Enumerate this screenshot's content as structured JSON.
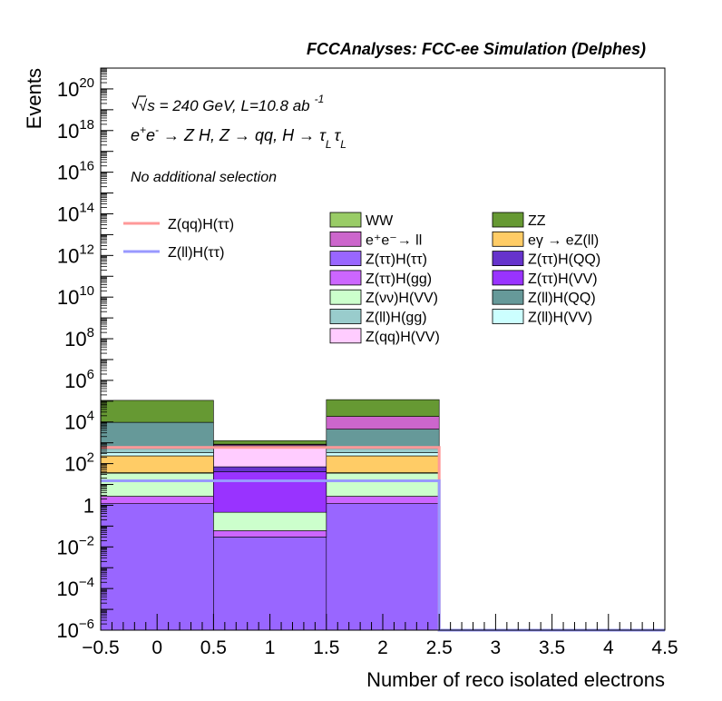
{
  "chart_data": {
    "type": "bar",
    "stacked": true,
    "title": "FCCAnalyses: FCC-ee Simulation (Delphes)",
    "annotations": {
      "line1_sqrt": "√s",
      "line1_rest": " = 240 GeV, L=10.8 ab",
      "line1_exp": "-1",
      "process": "e⁺e⁻ → Z H, Z → qq, H → τ_L τ_L",
      "process_parts": {
        "e1": "e",
        "sup1": "+",
        "e2": "e",
        "sup2": "-",
        "rest": " → Z H, Z  → qq, H  → ",
        "tau": "τ",
        "sub": "L"
      },
      "selection": "No additional selection"
    },
    "xlabel": "Number of reco isolated electrons",
    "ylabel": "Events",
    "xlim": [
      -0.5,
      4.5
    ],
    "ylim": [
      1e-06,
      1e+21
    ],
    "yscale": "log",
    "xticks": [
      {
        "v": -0.5,
        "label": "−0.5"
      },
      {
        "v": 0,
        "label": "0"
      },
      {
        "v": 0.5,
        "label": "0.5"
      },
      {
        "v": 1,
        "label": "1"
      },
      {
        "v": 1.5,
        "label": "1.5"
      },
      {
        "v": 2,
        "label": "2"
      },
      {
        "v": 2.5,
        "label": "2.5"
      },
      {
        "v": 3,
        "label": "3"
      },
      {
        "v": 3.5,
        "label": "3.5"
      },
      {
        "v": 4,
        "label": "4"
      },
      {
        "v": 4.5,
        "label": "4.5"
      }
    ],
    "yticks": [
      {
        "exp": -6,
        "base": "10",
        "sup": "−6"
      },
      {
        "exp": -4,
        "base": "10",
        "sup": "−4"
      },
      {
        "exp": -2,
        "base": "10",
        "sup": "−2"
      },
      {
        "exp": 0,
        "base": "1",
        "sup": ""
      },
      {
        "exp": 2,
        "base": "10",
        "sup": "2"
      },
      {
        "exp": 4,
        "base": "10",
        "sup": "4"
      },
      {
        "exp": 6,
        "base": "10",
        "sup": "6"
      },
      {
        "exp": 8,
        "base": "10",
        "sup": "8"
      },
      {
        "exp": 10,
        "base": "10",
        "sup": "10"
      },
      {
        "exp": 12,
        "base": "10",
        "sup": "12"
      },
      {
        "exp": 14,
        "base": "10",
        "sup": "14"
      },
      {
        "exp": 16,
        "base": "10",
        "sup": "16"
      },
      {
        "exp": 18,
        "base": "10",
        "sup": "18"
      },
      {
        "exp": 20,
        "base": "10",
        "sup": "20"
      }
    ],
    "bins": [
      -0.5,
      0.5,
      1.5,
      2.5,
      3.5,
      4.5
    ],
    "stack": [
      {
        "name": "Z(ττ)H(ττ)",
        "color": "#9966ff",
        "values": [
          1.2,
          0.03,
          1.2,
          0,
          0
        ]
      },
      {
        "name": "Z(ττ)H(gg)",
        "color": "#cc66ff",
        "values": [
          1.5,
          0.03,
          1.5,
          0,
          0
        ]
      },
      {
        "name": "Z(νν)H(VV)",
        "color": "#ccffcc",
        "values": [
          32,
          0.4,
          32,
          0,
          0
        ]
      },
      {
        "name": "Z(ττ)H(VV)",
        "color": "#9933ff",
        "values": [
          0,
          40,
          0,
          0,
          0
        ]
      },
      {
        "name": "Z(ττ)H(QQ)",
        "color": "#6633cc",
        "values": [
          0,
          30,
          0,
          0,
          0
        ]
      },
      {
        "name": "Z(qq)H(VV)",
        "color": "#ffccff",
        "values": [
          2,
          500,
          2,
          0,
          0
        ]
      },
      {
        "name": "eγ → eZ(ll)",
        "color": "#ffcc66",
        "values": [
          200,
          20,
          200,
          0,
          0
        ]
      },
      {
        "name": "Z(ll)H(VV)",
        "color": "#ccffff",
        "values": [
          100,
          30,
          100,
          0,
          0
        ]
      },
      {
        "name": "Z(ll)H(gg)",
        "color": "#99cccc",
        "values": [
          200,
          50,
          200,
          0,
          0
        ]
      },
      {
        "name": "Z(ll)H(QQ)",
        "color": "#669999",
        "values": [
          9000,
          60,
          4000,
          0,
          0
        ]
      },
      {
        "name": "e⁺e⁻→ ll",
        "color": "#cc66cc",
        "values": [
          100,
          100,
          14000,
          0,
          0
        ]
      },
      {
        "name": "WW",
        "color": "#99cc66",
        "values": [
          0.8,
          30,
          0.8,
          0,
          0
        ]
      },
      {
        "name": "ZZ",
        "color": "#669933",
        "values": [
          100000,
          400,
          100000,
          0,
          0
        ]
      }
    ],
    "signals": [
      {
        "name": "Z(qq)H(ττ)",
        "color": "#ff9999",
        "values": [
          600,
          600,
          600,
          1e-06,
          1e-06
        ]
      },
      {
        "name": "Z(ll)H(ττ)",
        "color": "#9999ff",
        "values": [
          15,
          15,
          15,
          1e-06,
          1e-06
        ]
      }
    ],
    "legend_left": [
      {
        "name": "Z(qq)H(ττ)",
        "color": "#ff9999"
      },
      {
        "name": "Z(ll)H(ττ)",
        "color": "#9999ff"
      }
    ],
    "legend_right": [
      {
        "name": "WW",
        "color": "#99cc66"
      },
      {
        "name": "ZZ",
        "color": "#669933"
      },
      {
        "name": "e⁺e⁻→ ll",
        "color": "#cc66cc"
      },
      {
        "name": "eγ → eZ(ll)",
        "color": "#ffcc66"
      },
      {
        "name": "Z(ττ)H(ττ)",
        "color": "#9966ff"
      },
      {
        "name": "Z(ττ)H(QQ)",
        "color": "#6633cc"
      },
      {
        "name": "Z(ττ)H(gg)",
        "color": "#cc66ff"
      },
      {
        "name": "Z(ττ)H(VV)",
        "color": "#9933ff"
      },
      {
        "name": "Z(νν)H(VV)",
        "color": "#ccffcc"
      },
      {
        "name": "Z(ll)H(QQ)",
        "color": "#669999"
      },
      {
        "name": "Z(ll)H(gg)",
        "color": "#99cccc"
      },
      {
        "name": "Z(ll)H(VV)",
        "color": "#ccffff"
      },
      {
        "name": "Z(qq)H(VV)",
        "color": "#ffccff"
      }
    ],
    "grid": false,
    "legend_position": "top"
  }
}
